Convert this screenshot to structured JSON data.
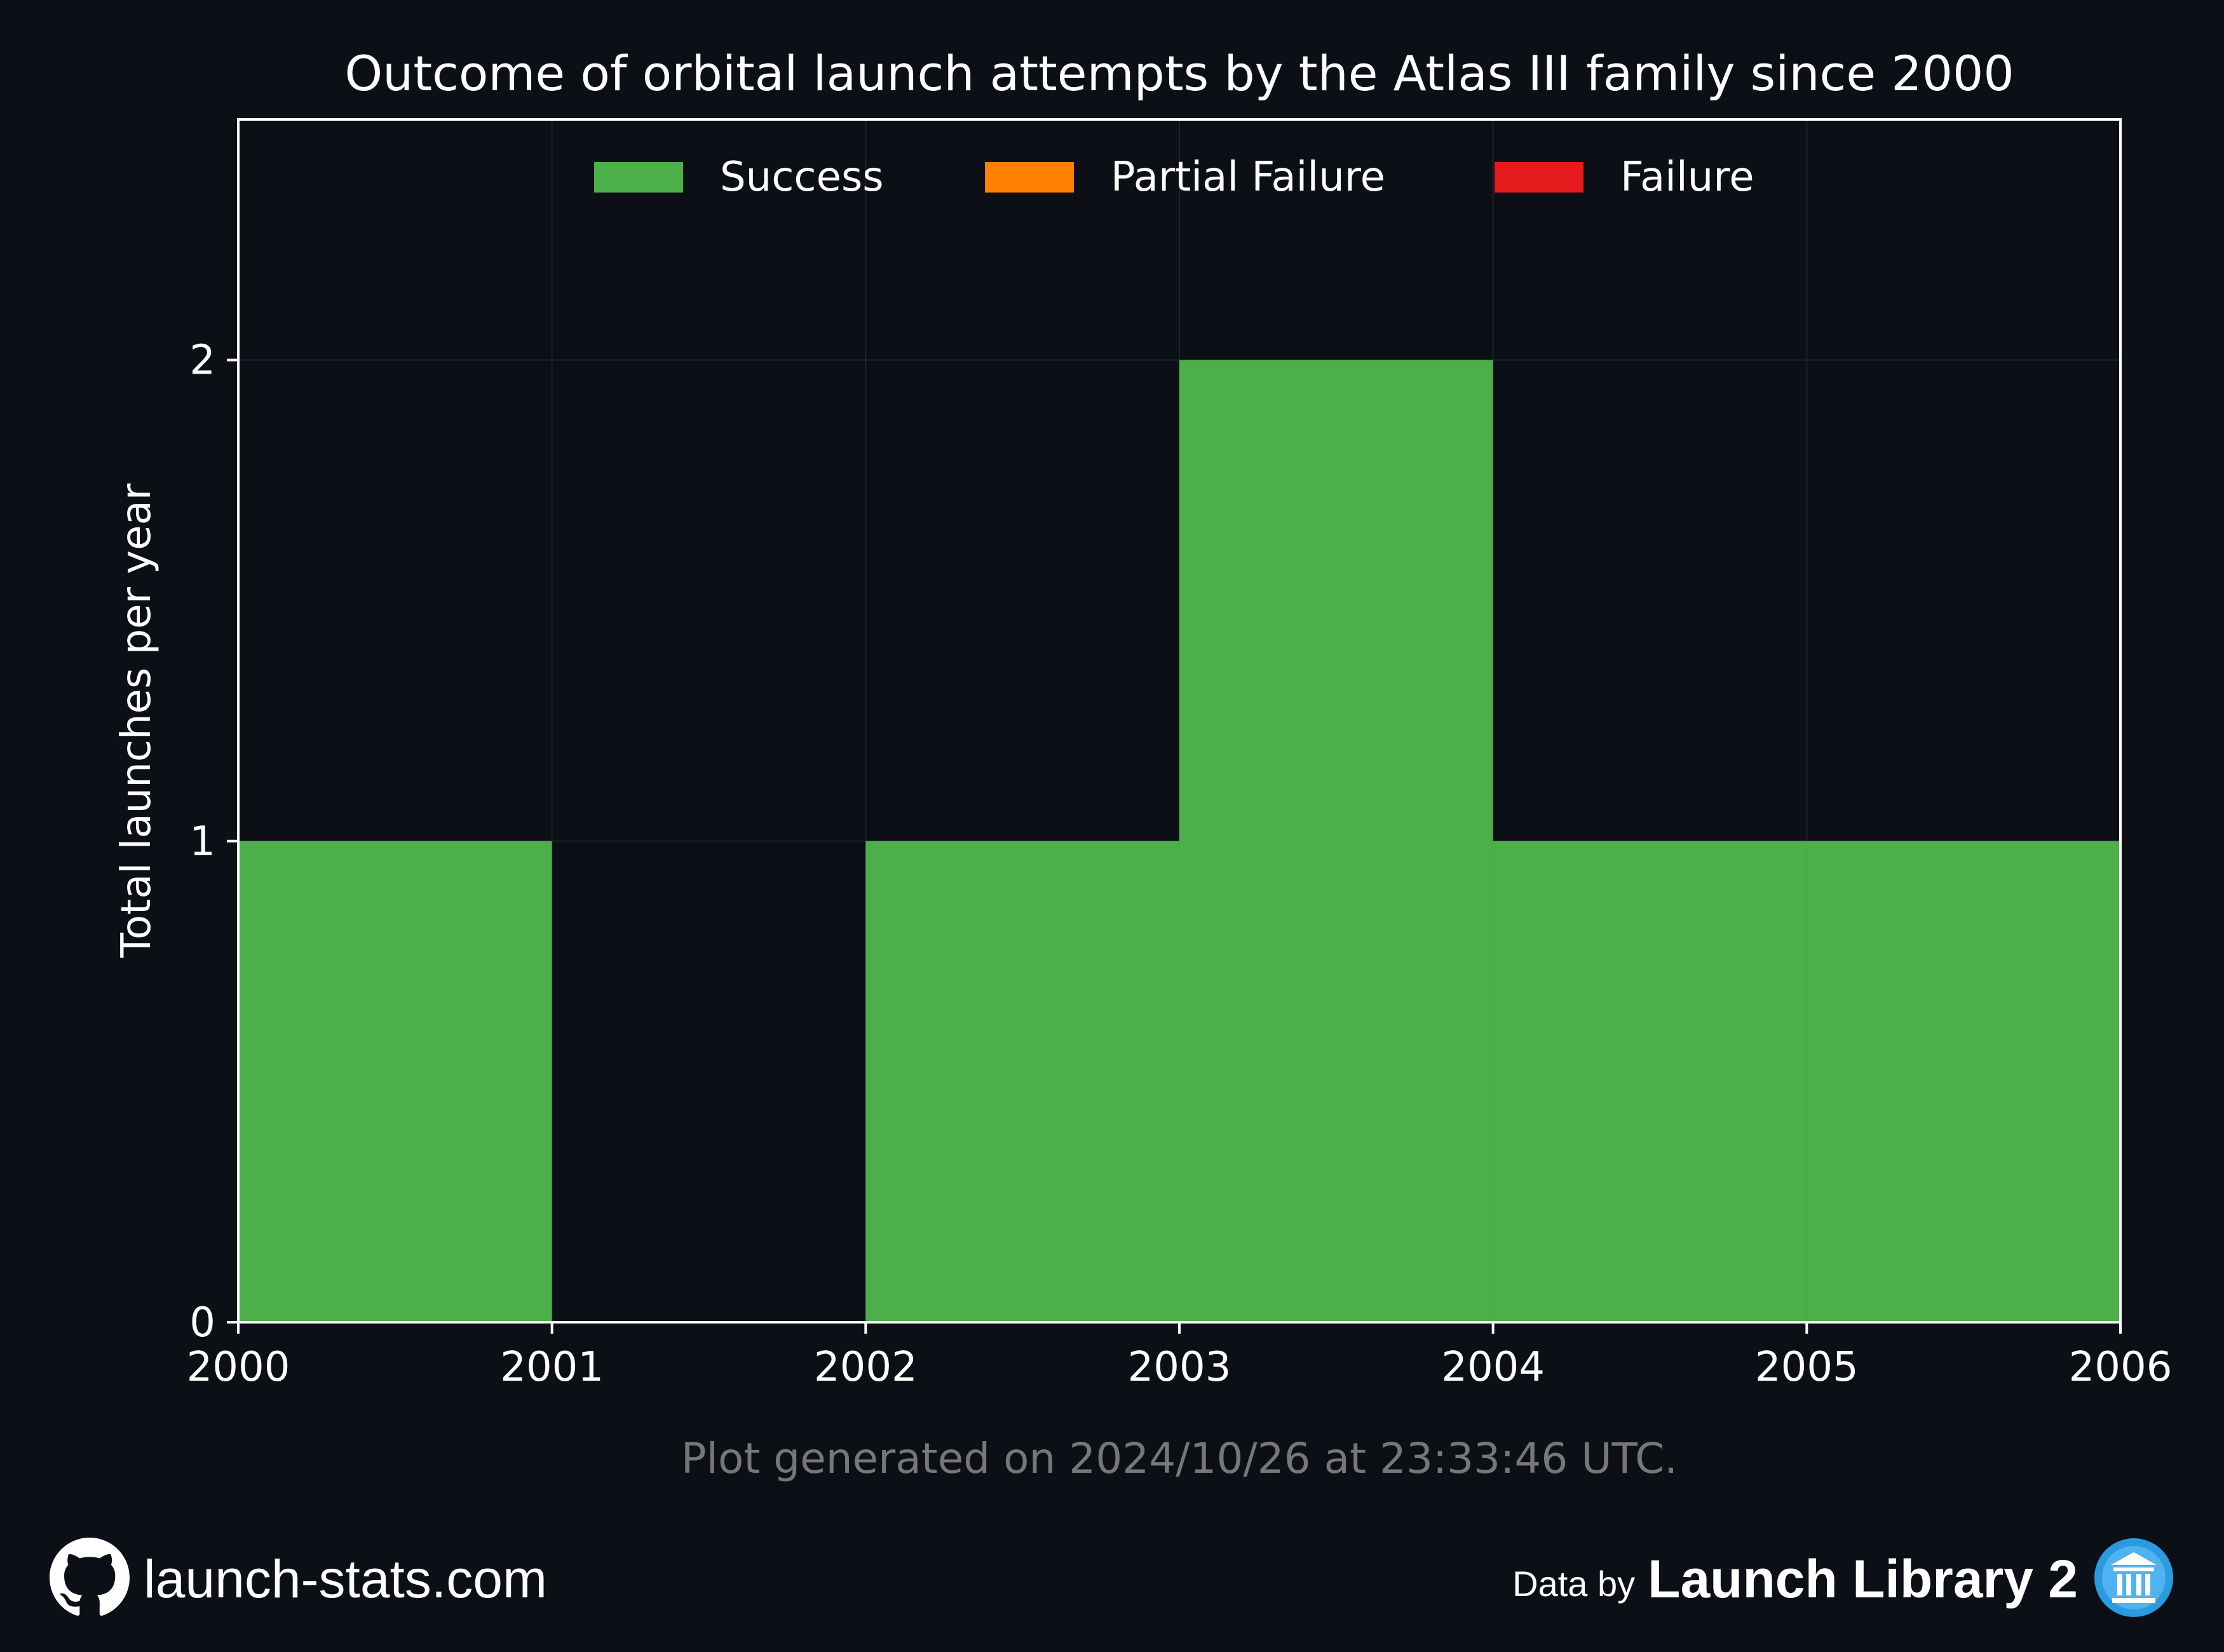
{
  "chart_data": {
    "type": "bar",
    "title": "Outcome of orbital launch attempts by the Atlas III family since 2000",
    "xlabel": "",
    "ylabel": "Total launches per year",
    "x": [
      2000,
      2001,
      2002,
      2003,
      2004,
      2005
    ],
    "xticks": [
      "2000",
      "2001",
      "2002",
      "2003",
      "2004",
      "2005",
      "2006"
    ],
    "xlim": [
      2000,
      2006
    ],
    "yticks": [
      "0",
      "1",
      "2"
    ],
    "ylim": [
      0,
      2.5
    ],
    "stacked": true,
    "grid": true,
    "legend_position": "top-center",
    "series": [
      {
        "name": "Success",
        "color": "#4daf4a",
        "values": [
          1,
          0,
          1,
          2,
          1,
          1
        ]
      },
      {
        "name": "Partial Failure",
        "color": "#ff7f00",
        "values": [
          0,
          0,
          0,
          0,
          0,
          0
        ]
      },
      {
        "name": "Failure",
        "color": "#e41a1c",
        "values": [
          0,
          0,
          0,
          0,
          0,
          0
        ]
      }
    ]
  },
  "note": "Plot generated on 2024/10/26 at 23:33:46 UTC.",
  "footer": {
    "site": "launch-stats.com",
    "site_icon": "github-icon",
    "data_by": "Data by",
    "source": "Launch Library 2",
    "source_icon": "launch-library-icon"
  }
}
